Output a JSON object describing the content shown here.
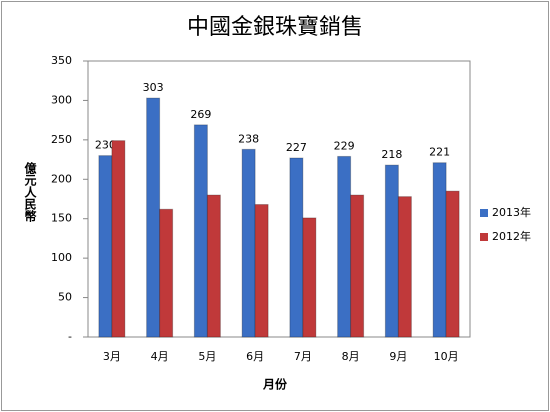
{
  "chart_data": {
    "type": "bar",
    "title": "中國金銀珠寶銷售",
    "x_label": "月份",
    "y_label": "億元人民幣",
    "categories": [
      "3月",
      "4月",
      "5月",
      "6月",
      "7月",
      "8月",
      "9月",
      "10月"
    ],
    "series": [
      {
        "name": "2013年",
        "color": "#3b6fc4",
        "values": [
          230,
          303,
          269,
          238,
          227,
          229,
          218,
          221
        ],
        "show_labels": true
      },
      {
        "name": "2012年",
        "color": "#c0393a",
        "values": [
          249,
          162,
          180,
          168,
          151,
          180,
          178,
          185
        ],
        "show_labels": false
      }
    ],
    "ylim": [
      0,
      350
    ],
    "yticks": [
      {
        "value": 0,
        "label": "-"
      },
      50,
      100,
      150,
      200,
      250,
      300,
      350
    ],
    "grid": false,
    "legend": "right"
  }
}
